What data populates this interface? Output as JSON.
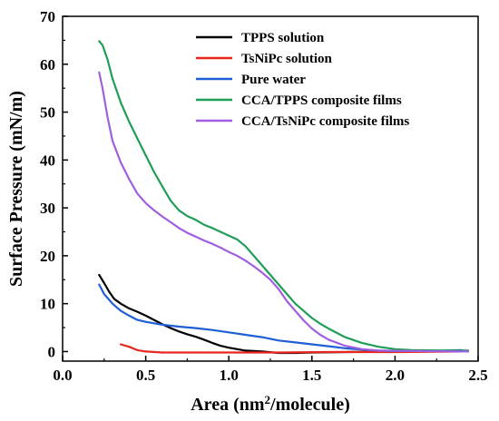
{
  "chart_data": {
    "type": "line",
    "title": "",
    "xlabel": "Area (nm²/molecule)",
    "xlabel_main": "Area (nm",
    "xlabel_sup": "2",
    "xlabel_tail": "/molecule)",
    "ylabel": "Surface Pressure (mN/m)",
    "xlim": [
      0.0,
      2.5
    ],
    "ylim": [
      -2,
      70
    ],
    "xticks": [
      0.0,
      0.5,
      1.0,
      1.5,
      2.0,
      2.5
    ],
    "xtick_labels": [
      "0.0",
      "0.5",
      "1.0",
      "1.5",
      "2.0",
      "2.5"
    ],
    "yticks": [
      0,
      10,
      20,
      30,
      40,
      50,
      60,
      70
    ],
    "ytick_labels": [
      "0",
      "10",
      "20",
      "30",
      "40",
      "50",
      "60",
      "70"
    ],
    "grid": false,
    "legend_position": "top-right",
    "series": [
      {
        "name": "TPPS solution",
        "color": "#000000",
        "points": [
          [
            0.22,
            16.0
          ],
          [
            0.25,
            14.3
          ],
          [
            0.28,
            12.5
          ],
          [
            0.31,
            11.0
          ],
          [
            0.35,
            10.0
          ],
          [
            0.4,
            9.0
          ],
          [
            0.45,
            8.3
          ],
          [
            0.5,
            7.5
          ],
          [
            0.55,
            6.6
          ],
          [
            0.6,
            5.7
          ],
          [
            0.65,
            4.9
          ],
          [
            0.7,
            4.2
          ],
          [
            0.75,
            3.6
          ],
          [
            0.8,
            3.1
          ],
          [
            0.85,
            2.5
          ],
          [
            0.9,
            1.8
          ],
          [
            0.95,
            1.2
          ],
          [
            1.0,
            0.8
          ],
          [
            1.05,
            0.5
          ],
          [
            1.1,
            0.2
          ],
          [
            1.2,
            0.0
          ],
          [
            1.3,
            -0.3
          ],
          [
            1.4,
            -0.3
          ],
          [
            1.5,
            -0.2
          ],
          [
            1.7,
            -0.1
          ],
          [
            2.0,
            0.0
          ],
          [
            2.2,
            0.1
          ],
          [
            2.4,
            0.2
          ]
        ]
      },
      {
        "name": "TsNiPc solution",
        "color": "#e8261f",
        "points": [
          [
            0.35,
            1.5
          ],
          [
            0.4,
            1.0
          ],
          [
            0.45,
            0.3
          ],
          [
            0.5,
            0.0
          ],
          [
            0.6,
            -0.2
          ],
          [
            0.8,
            -0.2
          ],
          [
            1.0,
            -0.2
          ],
          [
            1.3,
            -0.2
          ],
          [
            1.6,
            -0.1
          ],
          [
            2.0,
            -0.1
          ],
          [
            2.4,
            0.0
          ]
        ]
      },
      {
        "name": "Pure water",
        "color": "#1f5fd6",
        "points": [
          [
            0.22,
            14.0
          ],
          [
            0.25,
            12.0
          ],
          [
            0.3,
            10.0
          ],
          [
            0.35,
            8.5
          ],
          [
            0.4,
            7.5
          ],
          [
            0.45,
            6.6
          ],
          [
            0.5,
            6.2
          ],
          [
            0.6,
            5.6
          ],
          [
            0.7,
            5.2
          ],
          [
            0.8,
            4.9
          ],
          [
            0.9,
            4.5
          ],
          [
            1.0,
            4.0
          ],
          [
            1.1,
            3.5
          ],
          [
            1.2,
            3.0
          ],
          [
            1.3,
            2.3
          ],
          [
            1.4,
            1.9
          ],
          [
            1.5,
            1.5
          ],
          [
            1.6,
            1.1
          ],
          [
            1.7,
            0.7
          ],
          [
            1.8,
            0.4
          ],
          [
            1.9,
            0.2
          ],
          [
            2.0,
            0.1
          ],
          [
            2.2,
            0.1
          ],
          [
            2.4,
            0.3
          ],
          [
            2.44,
            0.0
          ]
        ]
      },
      {
        "name": "CCA/TPPS composite films",
        "color": "#1f9e57",
        "points": [
          [
            0.22,
            64.8
          ],
          [
            0.24,
            64.0
          ],
          [
            0.27,
            61.0
          ],
          [
            0.3,
            57.0
          ],
          [
            0.35,
            52.0
          ],
          [
            0.4,
            48.0
          ],
          [
            0.45,
            44.5
          ],
          [
            0.5,
            41.0
          ],
          [
            0.55,
            37.5
          ],
          [
            0.6,
            34.5
          ],
          [
            0.65,
            31.5
          ],
          [
            0.7,
            29.5
          ],
          [
            0.75,
            28.3
          ],
          [
            0.8,
            27.5
          ],
          [
            0.85,
            26.5
          ],
          [
            0.9,
            25.8
          ],
          [
            0.95,
            25.0
          ],
          [
            1.0,
            24.2
          ],
          [
            1.05,
            23.4
          ],
          [
            1.1,
            22.0
          ],
          [
            1.15,
            20.0
          ],
          [
            1.2,
            18.0
          ],
          [
            1.25,
            16.0
          ],
          [
            1.3,
            14.0
          ],
          [
            1.35,
            12.0
          ],
          [
            1.4,
            10.0
          ],
          [
            1.45,
            8.5
          ],
          [
            1.5,
            7.0
          ],
          [
            1.55,
            5.8
          ],
          [
            1.6,
            4.8
          ],
          [
            1.7,
            3.0
          ],
          [
            1.8,
            1.8
          ],
          [
            1.9,
            1.0
          ],
          [
            2.0,
            0.5
          ],
          [
            2.1,
            0.3
          ],
          [
            2.3,
            0.2
          ],
          [
            2.44,
            0.2
          ]
        ]
      },
      {
        "name": "CCA/TsNiPc composite films",
        "color": "#a05ee0",
        "points": [
          [
            0.22,
            58.3
          ],
          [
            0.24,
            55.0
          ],
          [
            0.27,
            49.0
          ],
          [
            0.3,
            44.0
          ],
          [
            0.35,
            39.5
          ],
          [
            0.4,
            36.0
          ],
          [
            0.45,
            33.0
          ],
          [
            0.5,
            31.0
          ],
          [
            0.55,
            29.5
          ],
          [
            0.6,
            28.2
          ],
          [
            0.65,
            27.0
          ],
          [
            0.7,
            25.8
          ],
          [
            0.75,
            24.8
          ],
          [
            0.8,
            24.0
          ],
          [
            0.85,
            23.2
          ],
          [
            0.9,
            22.5
          ],
          [
            0.95,
            21.7
          ],
          [
            1.0,
            20.8
          ],
          [
            1.05,
            20.0
          ],
          [
            1.1,
            19.0
          ],
          [
            1.15,
            17.8
          ],
          [
            1.2,
            16.5
          ],
          [
            1.25,
            15.0
          ],
          [
            1.3,
            13.0
          ],
          [
            1.35,
            10.5
          ],
          [
            1.4,
            8.5
          ],
          [
            1.45,
            6.5
          ],
          [
            1.5,
            4.8
          ],
          [
            1.55,
            3.5
          ],
          [
            1.6,
            2.5
          ],
          [
            1.7,
            1.2
          ],
          [
            1.8,
            0.5
          ],
          [
            1.9,
            0.2
          ],
          [
            2.1,
            0.1
          ],
          [
            2.44,
            0.0
          ]
        ]
      }
    ]
  }
}
